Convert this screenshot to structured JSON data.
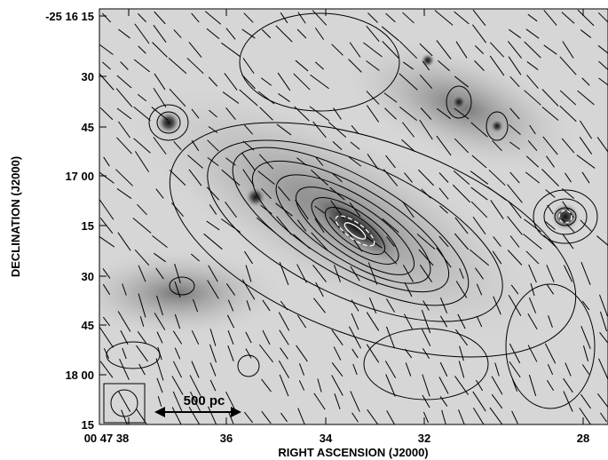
{
  "figure": {
    "x_label": "RIGHT ASCENSION (J2000)",
    "y_label": "DECLINATION (J2000)",
    "x_ticks": [
      "00 47 38",
      "36",
      "34",
      "32",
      "28"
    ],
    "y_ticks": [
      "-25 16 15",
      "30",
      "45",
      "17 00",
      "15",
      "30",
      "45",
      "18 00",
      "15"
    ],
    "scale_bar": "500 pc"
  }
}
